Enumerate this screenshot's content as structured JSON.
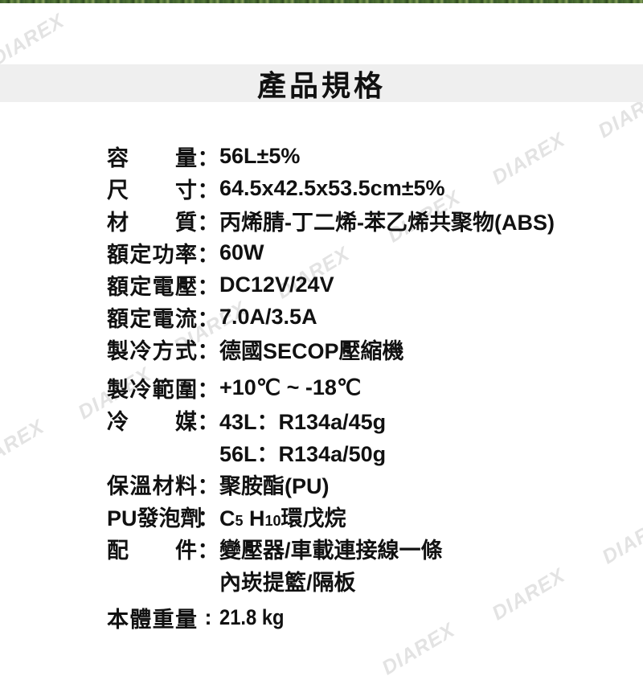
{
  "brand": {
    "watermark": "DIAREX"
  },
  "header": {
    "title": "產品規格"
  },
  "specs": {
    "rows": [
      {
        "label": "容量",
        "colon": "：",
        "value": "56L±5%"
      },
      {
        "label": "尺寸",
        "colon": "：",
        "value": "64.5x42.5x53.5cm±5%"
      },
      {
        "label": "材質",
        "colon": "：",
        "value": "丙烯腈-丁二烯-苯乙烯共聚物(ABS)"
      },
      {
        "label": "額定功率",
        "colon": "：",
        "value": "60W"
      },
      {
        "label": "額定電壓",
        "colon": "：",
        "value": "DC12V/24V"
      },
      {
        "label": "額定電流",
        "colon": "：",
        "value": "7.0A/3.5A"
      },
      {
        "label": "製冷方式",
        "colon": "：",
        "value": "德國SECOP壓縮機"
      },
      {
        "label": "製冷範圍",
        "colon": "：",
        "value": "+10℃ ~ -18℃"
      },
      {
        "label": "冷媒",
        "colon": "：",
        "value": "43L：R134a/45g",
        "line2": "56L：R134a/50g"
      },
      {
        "label": "保溫材料",
        "colon": "：",
        "value": "聚胺酯(PU)"
      },
      {
        "label": "PU發泡劑",
        "colon": "：",
        "parts": [
          "C",
          "5",
          " H",
          "10",
          "環戊烷"
        ]
      },
      {
        "label": "配件",
        "colon": "：",
        "value": "變壓器/車載連接線一條",
        "line2": "內崁提籃/隔板"
      },
      {
        "label": "本體重量",
        "colon": ":",
        "value": "21.8 kg"
      }
    ]
  }
}
